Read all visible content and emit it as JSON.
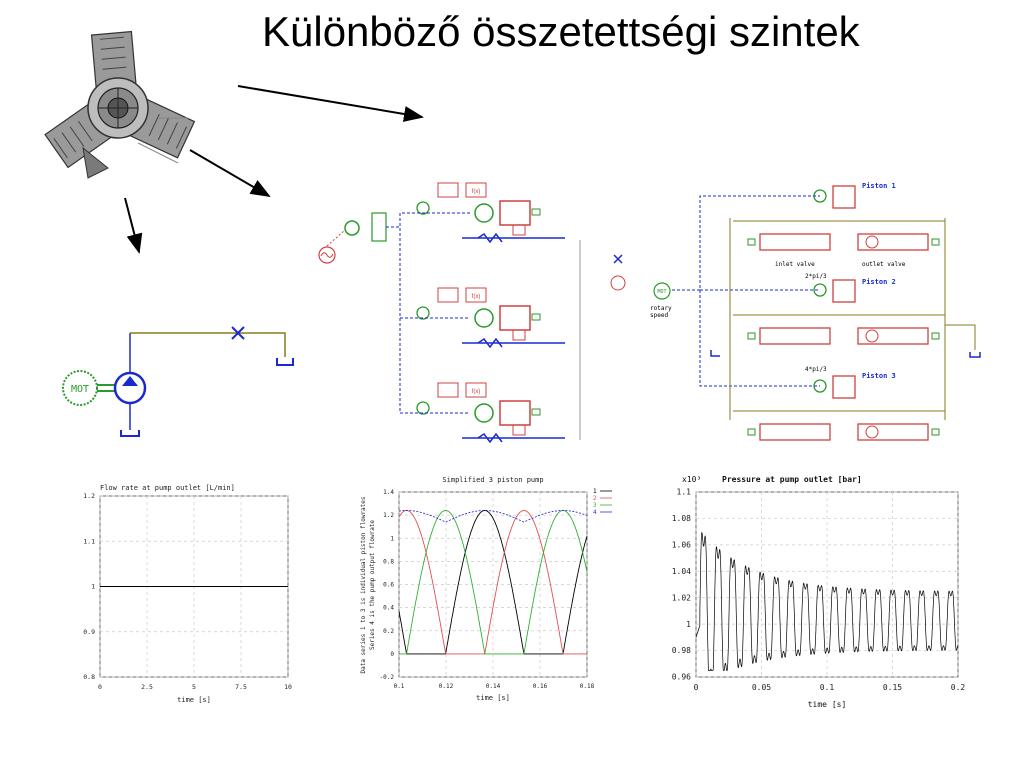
{
  "slide": {
    "title": "Különböző összetettségi szintek"
  },
  "schematic_simple": {
    "motor_label": "MOT"
  },
  "schematic_detailed": {
    "piston1": "Piston 1",
    "piston2": "Piston 2",
    "piston3": "Piston 3",
    "inlet_valve": "inlet valve",
    "outlet_valve": "outlet valve",
    "phase2": "2*pi/3",
    "phase3": "4*pi/3",
    "rotary1": "rotary",
    "rotary2": "speed",
    "motor_label": "MOT"
  },
  "chart_data": [
    {
      "type": "line",
      "title": "Flow rate at pump outlet [L/min]",
      "xlabel": "time [s]",
      "ylabel": "",
      "xlim": [
        0,
        10
      ],
      "ylim": [
        0.8,
        1.2
      ],
      "xticks": [
        "0",
        "2.5",
        "5",
        "7.5",
        "10"
      ],
      "yticks": [
        "0.8",
        "0.9",
        "1",
        "1.1",
        "1.2"
      ],
      "grid": true,
      "series": [
        {
          "x": [
            0,
            10
          ],
          "y": [
            1,
            1
          ],
          "color": "#000000"
        }
      ]
    },
    {
      "type": "line",
      "title": "Simplified 3 piston pump",
      "xlabel": "time [s]",
      "ylabel": "Data series 1 to 3 is individual piston flowrates\nSeries 4 is the pump output flowrate",
      "ylabel_lines": [
        "Data series 1 to 3 is individual piston flowrates",
        "Series 4 is the pump output flowrate"
      ],
      "xlim": [
        0.1,
        0.18
      ],
      "ylim": [
        -0.2,
        1.4
      ],
      "xticks": [
        "0.1",
        "0.12",
        "0.14",
        "0.16",
        "0.18"
      ],
      "yticks": [
        "-0.2",
        "0",
        "0.2",
        "0.4",
        "0.6",
        "0.8",
        "1",
        "1.2",
        "1.4"
      ],
      "grid": true,
      "legend": "top-right",
      "series": [
        {
          "name": "1",
          "color": "#000000",
          "phase": 0
        },
        {
          "name": "2",
          "color": "#e05050",
          "phase": 1
        },
        {
          "name": "3",
          "color": "#30b030",
          "phase": 2
        },
        {
          "name": "4",
          "color": "#3030e0",
          "phase": -1
        }
      ],
      "period": 0.0333,
      "peak": 1.24,
      "peak_time_series1": 0.1365
    },
    {
      "type": "line",
      "title": "Pressure at pump outlet [bar]",
      "xlabel": "time [s]",
      "ylabel": "",
      "y_multiplier": "x10³",
      "xlim": [
        0,
        0.2
      ],
      "ylim": [
        0.96,
        1.1
      ],
      "xticks": [
        "0",
        "0.05",
        "0.1",
        "0.15",
        "0.2"
      ],
      "yticks": [
        "0.96",
        "0.98",
        "1",
        "1.02",
        "1.04",
        "1.06",
        "1.08",
        "1.1"
      ],
      "grid": true,
      "series": [
        {
          "color": "#000000",
          "oscillation_period": 0.0111,
          "initial_peak": 1.08,
          "settled_peak": 1.03,
          "settled_trough": 0.975
        }
      ]
    }
  ]
}
